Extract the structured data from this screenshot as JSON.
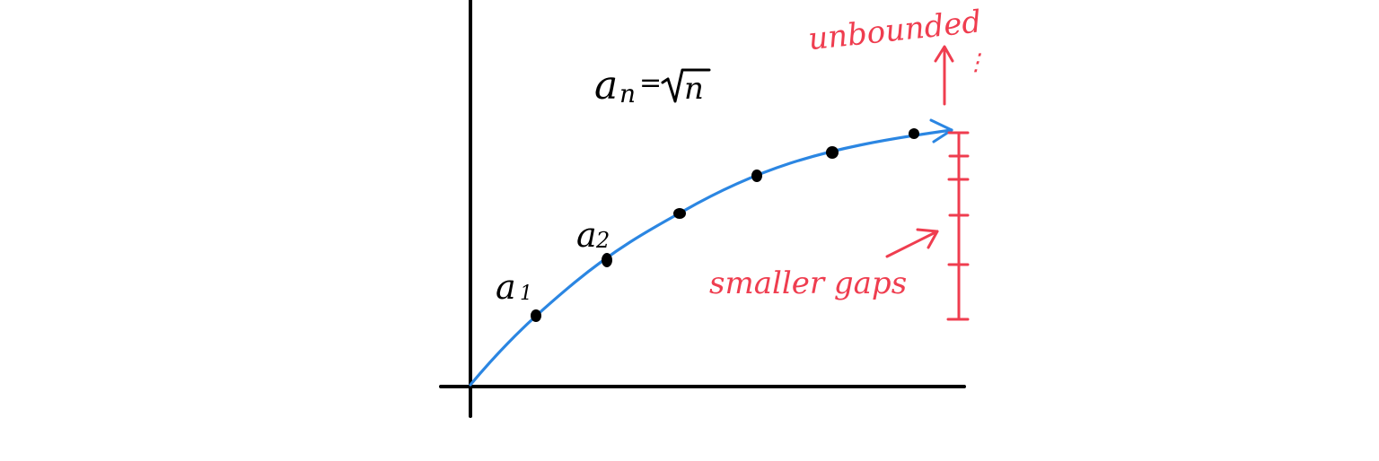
{
  "formula": {
    "lhs": "a",
    "lhs_sub": "n",
    "equals": "=",
    "radicand": "n"
  },
  "point_labels": [
    {
      "base": "a",
      "sub": "1"
    },
    {
      "base": "a",
      "sub": "2"
    }
  ],
  "annotations": {
    "unbounded": "unbounded",
    "smaller_gaps": "smaller gaps",
    "ellipsis": "⋮"
  },
  "colors": {
    "axes": "#000000",
    "curve": "#2b86e2",
    "points": "#000000",
    "annotation": "#ef3d4f"
  }
}
